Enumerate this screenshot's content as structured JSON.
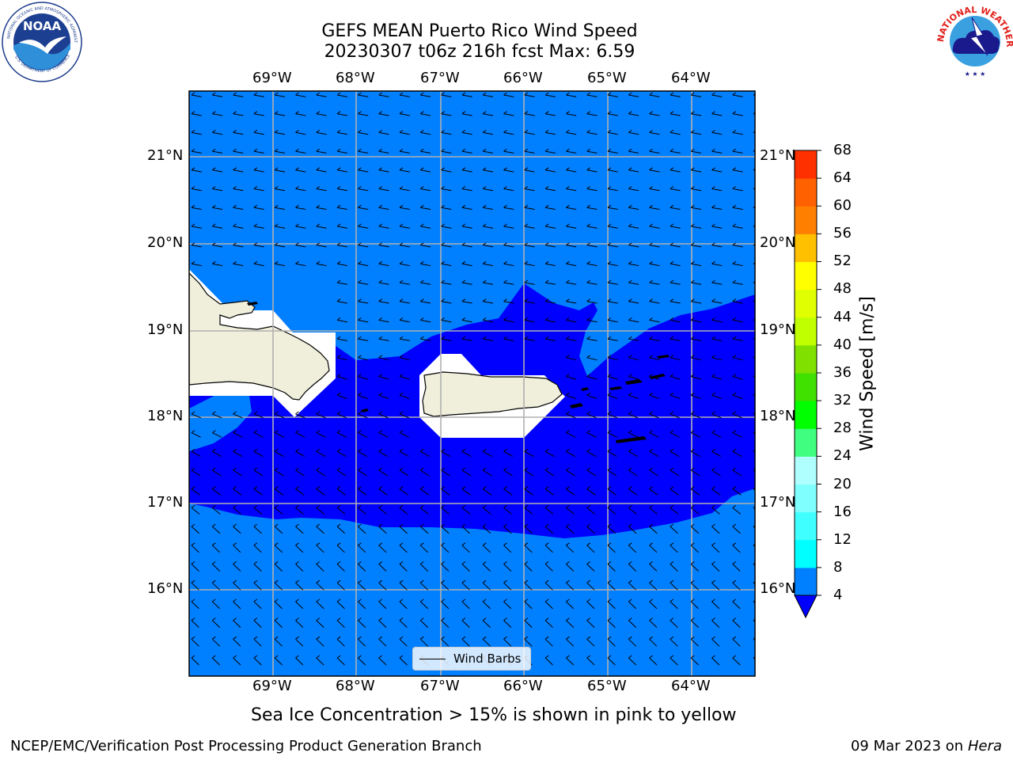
{
  "title_line1": "GEFS MEAN Puerto Rico Wind Speed",
  "title_line2": "20230307 t06z 216h fcst   Max: 6.59",
  "lon_labels": [
    "69°W",
    "68°W",
    "67°W",
    "66°W",
    "65°W",
    "64°W"
  ],
  "lat_labels": [
    "21°N",
    "20°N",
    "19°N",
    "18°N",
    "17°N",
    "16°N"
  ],
  "colorbar": {
    "label": "Wind Speed [m/s]",
    "ticks": [
      "68",
      "64",
      "60",
      "56",
      "52",
      "48",
      "44",
      "40",
      "36",
      "32",
      "28",
      "24",
      "20",
      "16",
      "12",
      "8",
      "4"
    ],
    "colors": [
      "#0000ff",
      "#0080ff",
      "#00ffff",
      "#40ffff",
      "#80ffff",
      "#b0ffff",
      "#40ff80",
      "#00ff00",
      "#40e000",
      "#80e000",
      "#c0ff00",
      "#e0ff00",
      "#ffff00",
      "#ffc000",
      "#ff8000",
      "#ff6000",
      "#ff3000",
      "#ff0000"
    ]
  },
  "legend_label": "Wind Barbs",
  "note": "Sea Ice Concentration > 15% is shown in pink to yellow",
  "footer_left": "NCEP/EMC/Verification Post Processing Product Generation Branch",
  "footer_date": "09 Mar 2023 on",
  "footer_host": "Hera",
  "logos": [
    "noaa-logo",
    "national-weather-service-logo"
  ],
  "colors": {
    "wind_4_8": "#0080ff",
    "wind_below_4": "#0000ff",
    "land": "#efefdc",
    "masked": "#ffffff",
    "grid": "#b0b0b0"
  }
}
